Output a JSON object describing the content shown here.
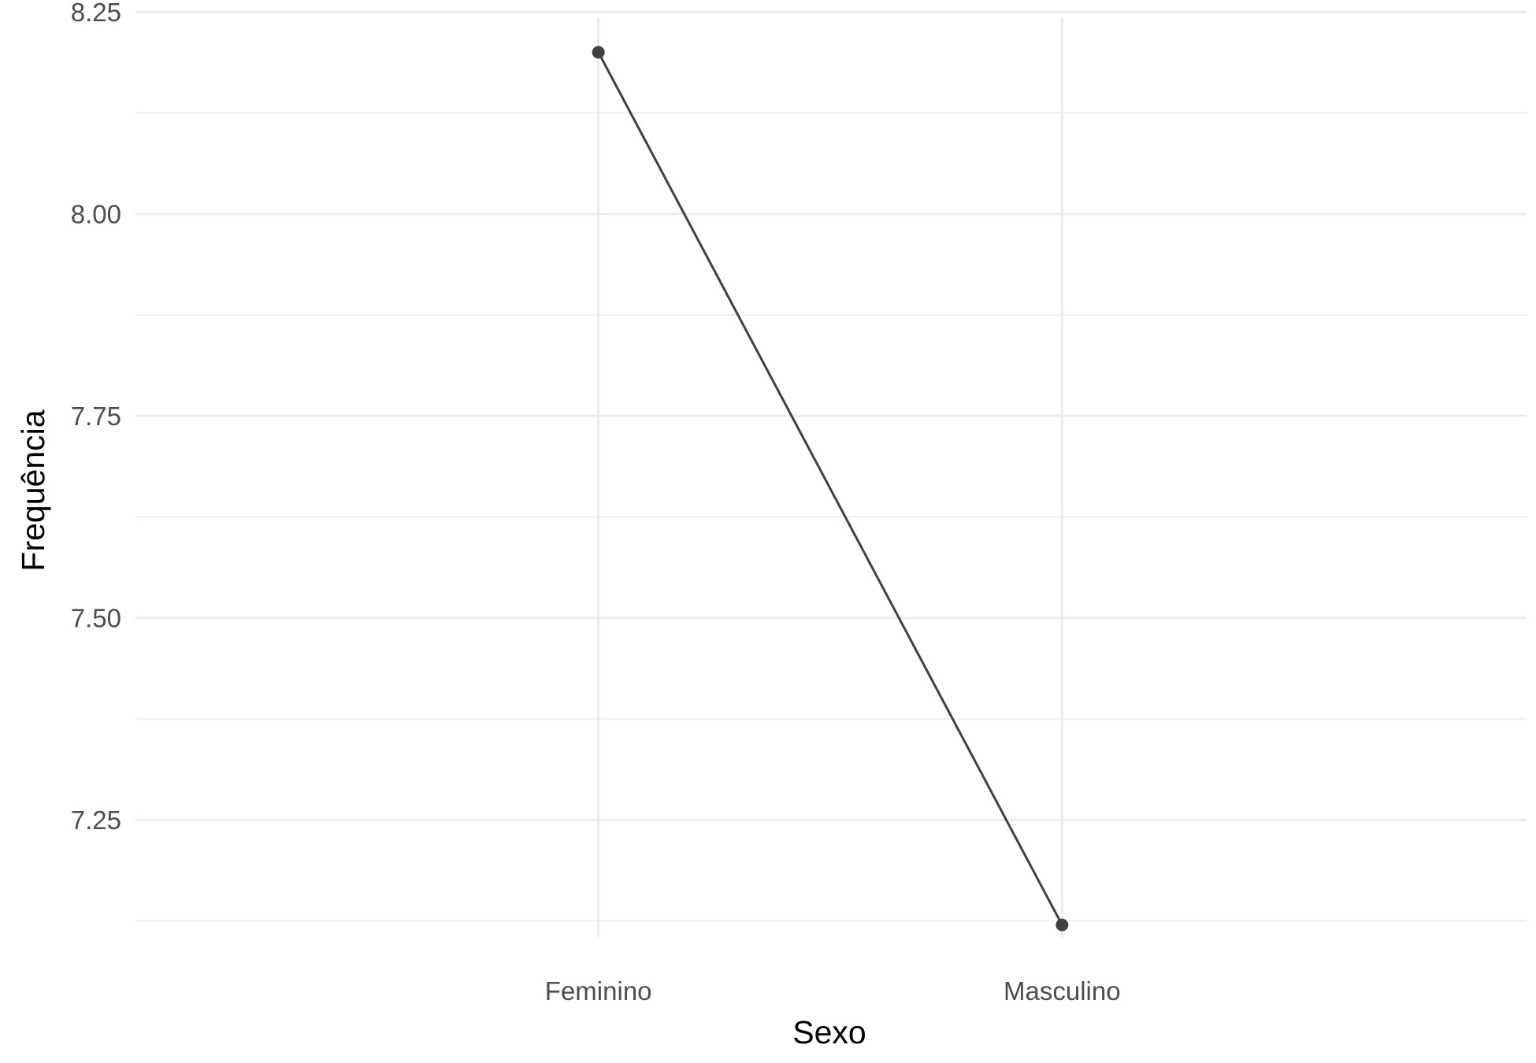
{
  "chart_data": {
    "type": "line",
    "categories": [
      "Feminino",
      "Masculino"
    ],
    "series": [
      {
        "values": [
          8.2,
          7.12
        ]
      }
    ],
    "title": "",
    "xlabel": "Sexo",
    "ylabel": "Frequência",
    "ylim": [
      7.105,
      8.255
    ],
    "yticks": [
      7.25,
      7.5,
      7.75,
      8.0,
      8.25
    ],
    "ytick_labels": [
      "7.25",
      "7.50",
      "7.75",
      "8.00",
      "8.25"
    ],
    "grid": true,
    "legend": "none",
    "colors": {
      "line": "#404040",
      "grid": "#ebebeb",
      "background": "#ffffff"
    }
  }
}
